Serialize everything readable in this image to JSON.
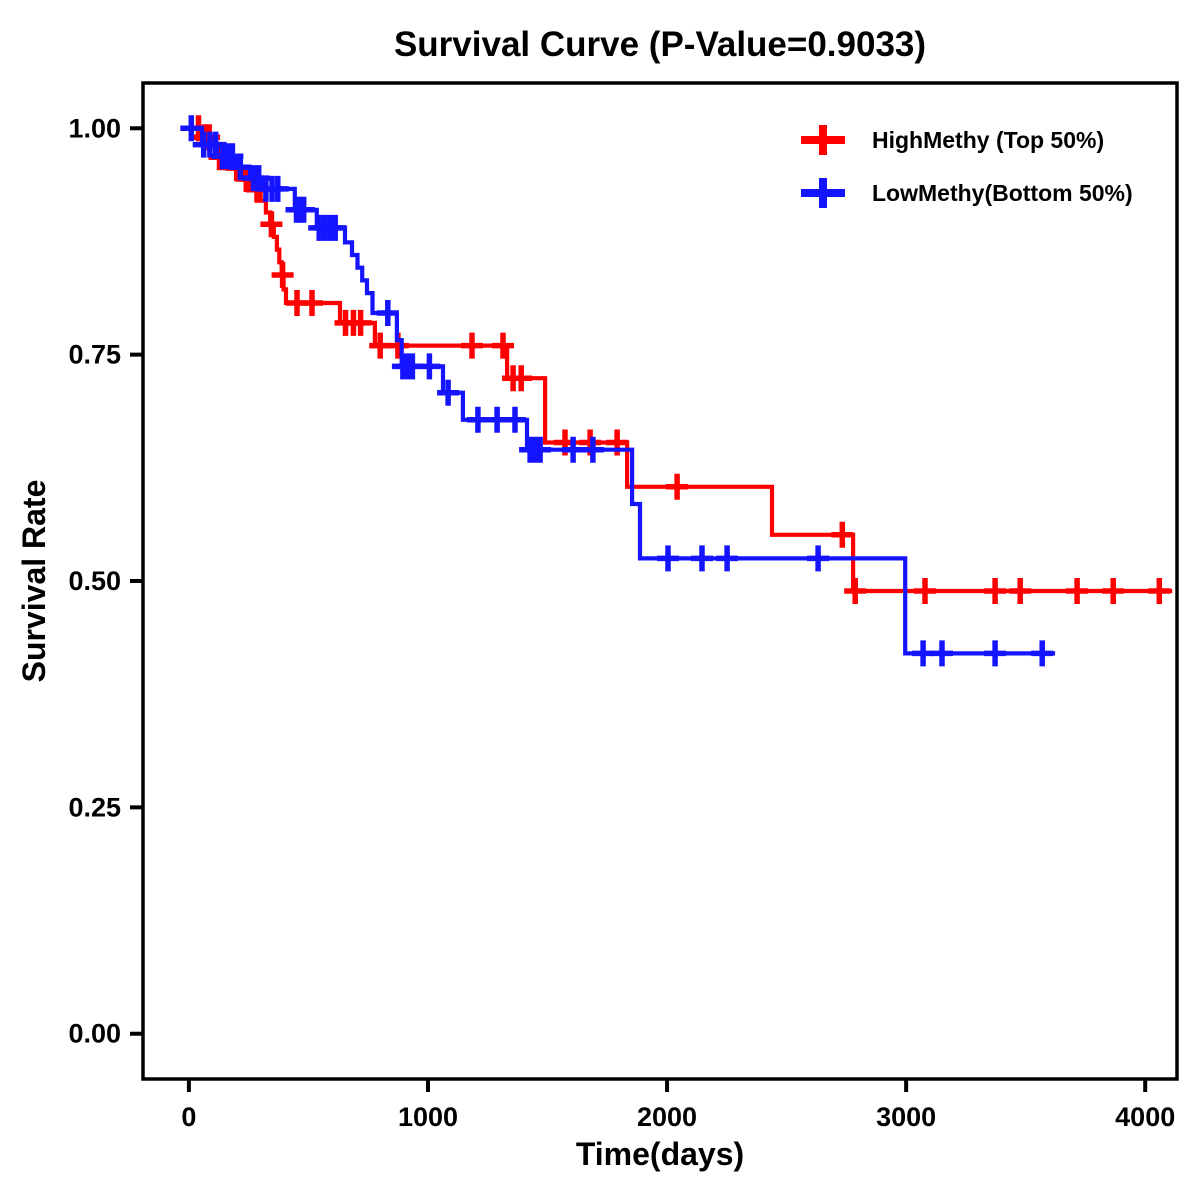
{
  "title": "Survival Curve (P-Value=0.9033)",
  "legend": {
    "items": [
      {
        "label": "HighMethy (Top 50%)",
        "color": "#FF0000"
      },
      {
        "label": "LowMethy(Bottom 50%)",
        "color": "#1414FF"
      }
    ]
  },
  "chart_data": {
    "type": "line",
    "subtype": "kaplan_meier_step",
    "title": "Survival Curve (P-Value=0.9033)",
    "p_value": 0.9033,
    "xlabel": "Time(days)",
    "ylabel": "Survival Rate",
    "xlim": [
      -192,
      4133
    ],
    "ylim": [
      -0.05,
      1.05
    ],
    "grid": false,
    "legend_position": "top-right",
    "xticks": [
      {
        "v": 0,
        "label": "0"
      },
      {
        "v": 1000,
        "label": "1000"
      },
      {
        "v": 2000,
        "label": "2000"
      },
      {
        "v": 3000,
        "label": "3000"
      },
      {
        "v": 4000,
        "label": "4000"
      }
    ],
    "yticks": [
      {
        "v": 0.0,
        "label": "0.00"
      },
      {
        "v": 0.25,
        "label": "0.25"
      },
      {
        "v": 0.5,
        "label": "0.50"
      },
      {
        "v": 0.75,
        "label": "0.75"
      },
      {
        "v": 1.0,
        "label": "1.00"
      }
    ],
    "series": [
      {
        "id": "highmethy",
        "name": "HighMethy (Top 50%)",
        "color": "#FF0000",
        "end_time": 4113,
        "steps": [
          [
            0,
            1.0
          ],
          [
            55,
            0.99
          ],
          [
            95,
            0.98
          ],
          [
            120,
            0.968
          ],
          [
            180,
            0.956
          ],
          [
            225,
            0.944
          ],
          [
            270,
            0.932
          ],
          [
            300,
            0.92
          ],
          [
            322,
            0.907
          ],
          [
            340,
            0.894
          ],
          [
            355,
            0.88
          ],
          [
            368,
            0.866
          ],
          [
            378,
            0.852
          ],
          [
            388,
            0.838
          ],
          [
            396,
            0.822
          ],
          [
            406,
            0.807
          ],
          [
            632,
            0.785
          ],
          [
            778,
            0.76
          ],
          [
            1331,
            0.724
          ],
          [
            1490,
            0.653
          ],
          [
            1833,
            0.604
          ],
          [
            2439,
            0.551
          ],
          [
            2778,
            0.489
          ]
        ],
        "censors": [
          [
            40,
            1.0
          ],
          [
            65,
            0.99
          ],
          [
            85,
            0.99
          ],
          [
            128,
            0.968
          ],
          [
            150,
            0.968
          ],
          [
            170,
            0.968
          ],
          [
            200,
            0.956
          ],
          [
            240,
            0.944
          ],
          [
            260,
            0.944
          ],
          [
            285,
            0.932
          ],
          [
            345,
            0.894
          ],
          [
            392,
            0.838
          ],
          [
            452,
            0.807
          ],
          [
            515,
            0.807
          ],
          [
            655,
            0.785
          ],
          [
            688,
            0.785
          ],
          [
            718,
            0.785
          ],
          [
            800,
            0.76
          ],
          [
            874,
            0.76
          ],
          [
            1184,
            0.76
          ],
          [
            1314,
            0.76
          ],
          [
            1356,
            0.724
          ],
          [
            1390,
            0.724
          ],
          [
            1573,
            0.653
          ],
          [
            1678,
            0.653
          ],
          [
            1791,
            0.653
          ],
          [
            2042,
            0.604
          ],
          [
            2733,
            0.551
          ],
          [
            2787,
            0.489
          ],
          [
            3079,
            0.489
          ],
          [
            3372,
            0.489
          ],
          [
            3477,
            0.489
          ],
          [
            3715,
            0.489
          ],
          [
            3866,
            0.489
          ],
          [
            4059,
            0.489
          ]
        ]
      },
      {
        "id": "lowmethy",
        "name": "LowMethy(Bottom 50%)",
        "color": "#1414FF",
        "end_time": 3623,
        "steps": [
          [
            0,
            1.0
          ],
          [
            55,
            0.982
          ],
          [
            117,
            0.969
          ],
          [
            197,
            0.957
          ],
          [
            255,
            0.945
          ],
          [
            310,
            0.933
          ],
          [
            443,
            0.91
          ],
          [
            535,
            0.89
          ],
          [
            653,
            0.874
          ],
          [
            682,
            0.86
          ],
          [
            705,
            0.846
          ],
          [
            725,
            0.832
          ],
          [
            745,
            0.818
          ],
          [
            768,
            0.796
          ],
          [
            870,
            0.766
          ],
          [
            890,
            0.737
          ],
          [
            1063,
            0.708
          ],
          [
            1146,
            0.678
          ],
          [
            1414,
            0.645
          ],
          [
            1854,
            0.585
          ],
          [
            1887,
            0.525
          ],
          [
            2996,
            0.42
          ]
        ],
        "censors": [
          [
            10,
            1.0
          ],
          [
            62,
            0.982
          ],
          [
            88,
            0.982
          ],
          [
            112,
            0.982
          ],
          [
            140,
            0.969
          ],
          [
            160,
            0.969
          ],
          [
            182,
            0.969
          ],
          [
            215,
            0.957
          ],
          [
            270,
            0.945
          ],
          [
            292,
            0.945
          ],
          [
            322,
            0.933
          ],
          [
            348,
            0.933
          ],
          [
            372,
            0.933
          ],
          [
            450,
            0.91
          ],
          [
            465,
            0.91
          ],
          [
            480,
            0.91
          ],
          [
            545,
            0.89
          ],
          [
            568,
            0.89
          ],
          [
            590,
            0.89
          ],
          [
            612,
            0.89
          ],
          [
            832,
            0.796
          ],
          [
            895,
            0.737
          ],
          [
            915,
            0.737
          ],
          [
            935,
            0.737
          ],
          [
            1006,
            0.737
          ],
          [
            1084,
            0.708
          ],
          [
            1209,
            0.678
          ],
          [
            1289,
            0.678
          ],
          [
            1364,
            0.678
          ],
          [
            1427,
            0.645
          ],
          [
            1448,
            0.645
          ],
          [
            1469,
            0.645
          ],
          [
            1607,
            0.645
          ],
          [
            1690,
            0.645
          ],
          [
            2004,
            0.525
          ],
          [
            2146,
            0.525
          ],
          [
            2251,
            0.525
          ],
          [
            2632,
            0.525
          ],
          [
            3071,
            0.42
          ],
          [
            3150,
            0.42
          ],
          [
            3372,
            0.42
          ],
          [
            3569,
            0.42
          ]
        ]
      }
    ]
  }
}
